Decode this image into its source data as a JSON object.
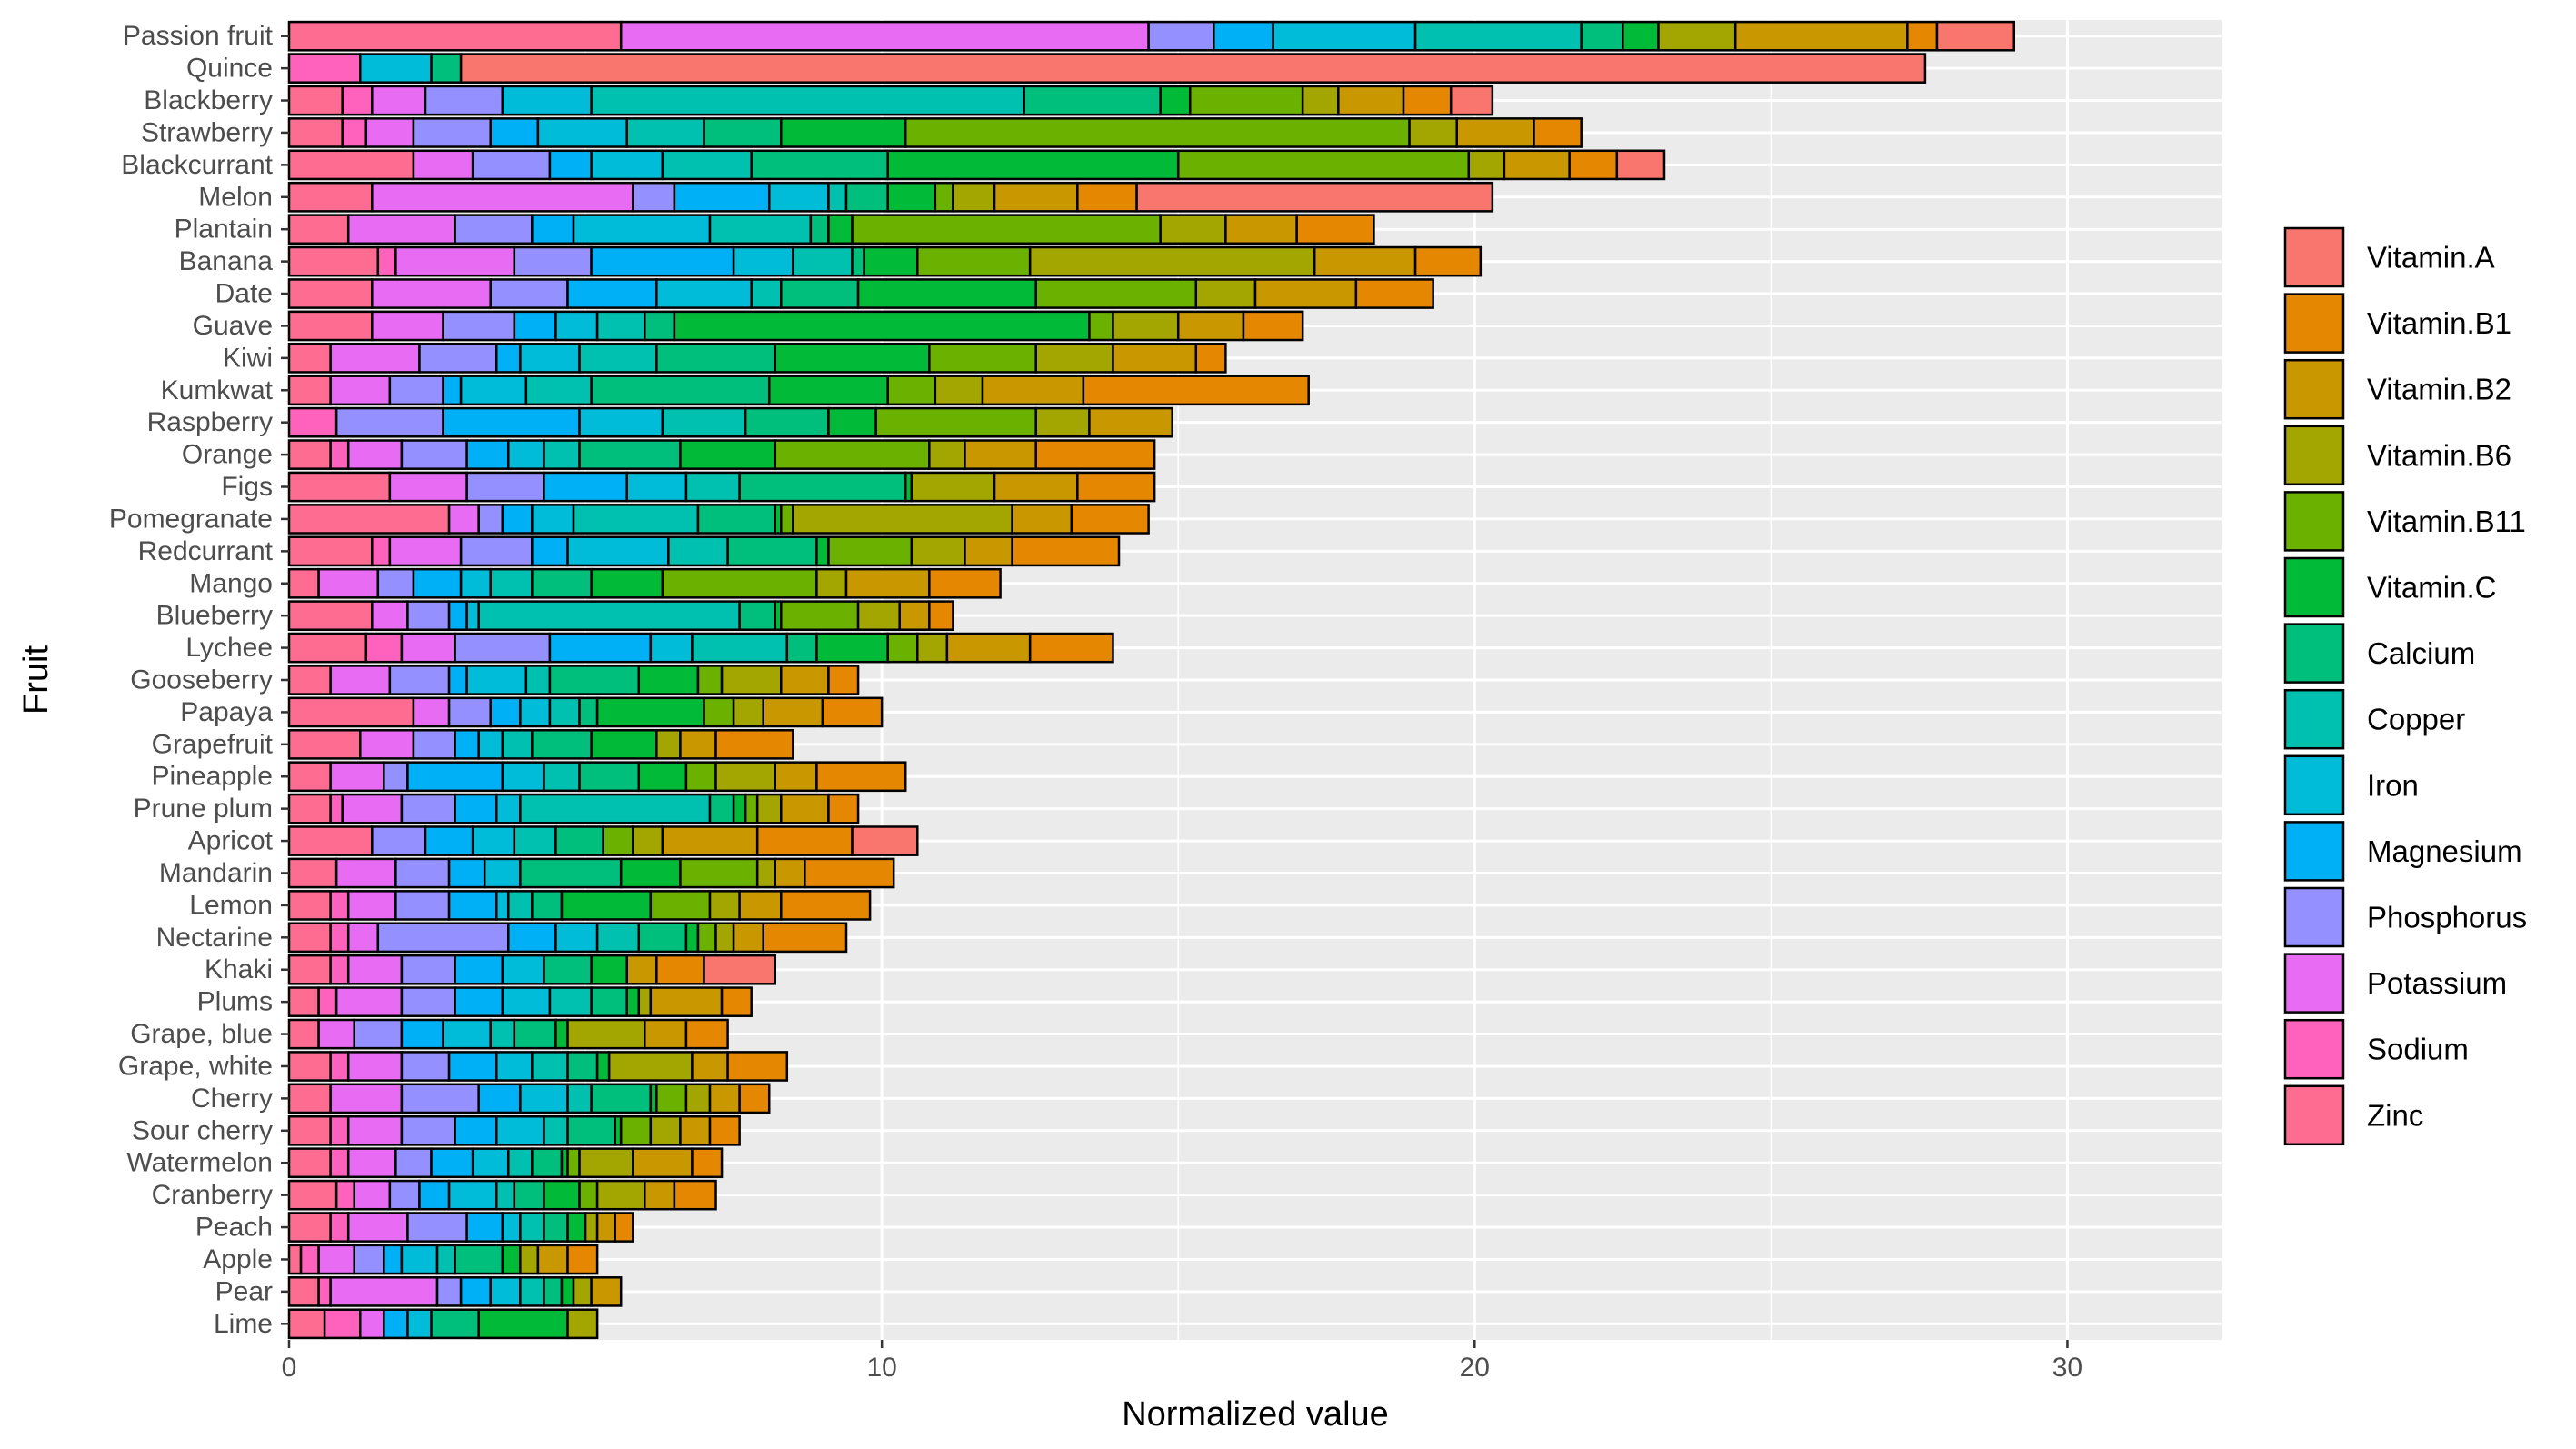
{
  "chart_data": {
    "type": "bar",
    "orientation": "horizontal",
    "stacked": true,
    "title": "",
    "xlabel": "Normalized value",
    "ylabel": "Fruit",
    "xlim": [
      0,
      32.6
    ],
    "xticks": [
      0,
      10,
      20,
      30
    ],
    "categories": [
      "Passion fruit",
      "Quince",
      "Blackberry",
      "Strawberry",
      "Blackcurrant",
      "Melon",
      "Plantain",
      "Banana",
      "Date",
      "Guave",
      "Kiwi",
      "Kumkwat",
      "Raspberry",
      "Orange",
      "Figs",
      "Pomegranate",
      "Redcurrant",
      "Mango",
      "Blueberry",
      "Lychee",
      "Gooseberry",
      "Papaya",
      "Grapefruit",
      "Pineapple",
      "Prune plum",
      "Apricot",
      "Mandarin",
      "Lemon",
      "Nectarine",
      "Khaki",
      "Plums",
      "Grape, blue",
      "Grape, white",
      "Cherry",
      "Sour cherry",
      "Watermelon",
      "Cranberry",
      "Peach",
      "Apple",
      "Pear",
      "Lime"
    ],
    "series": [
      {
        "name": "Vitamin.A",
        "color": "#F8766D",
        "values": [
          1.3,
          24.7,
          0.7,
          0,
          0.8,
          6.0,
          0,
          0,
          0,
          0,
          0,
          0,
          0,
          0,
          0,
          0,
          0,
          0,
          0,
          0,
          0,
          0,
          0,
          0,
          0,
          1.1,
          0,
          0,
          0,
          1.2,
          0,
          0,
          0,
          0,
          0,
          0,
          0,
          0,
          0,
          0,
          0
        ]
      },
      {
        "name": "Vitamin.B1",
        "color": "#E58700",
        "values": [
          0.5,
          0,
          0.8,
          0.8,
          0.8,
          1.0,
          1.3,
          1.1,
          1.3,
          1.0,
          0.5,
          3.8,
          0,
          2.0,
          1.3,
          1.3,
          1.8,
          1.2,
          0.4,
          1.4,
          0.5,
          1.0,
          1.3,
          1.5,
          0.5,
          1.6,
          1.5,
          1.5,
          1.4,
          0.8,
          0.5,
          0.7,
          1.0,
          0.5,
          0.5,
          0.5,
          0.7,
          0.3,
          0.5,
          0,
          0
        ]
      },
      {
        "name": "Vitamin.B2",
        "color": "#C99800",
        "values": [
          2.9,
          0,
          1.1,
          1.3,
          1.1,
          1.4,
          1.2,
          1.7,
          1.7,
          1.1,
          1.4,
          1.7,
          1.4,
          1.2,
          1.4,
          1.0,
          0.8,
          1.4,
          0.5,
          1.4,
          0.8,
          1.0,
          0.6,
          0.7,
          0.8,
          1.6,
          0.5,
          0.7,
          0.5,
          0.5,
          1.2,
          0.7,
          0.6,
          0.5,
          0.5,
          1.0,
          0.5,
          0.3,
          0.5,
          0.5,
          0
        ]
      },
      {
        "name": "Vitamin.B6",
        "color": "#A3A500",
        "values": [
          1.3,
          0,
          0.6,
          0.8,
          0.6,
          0.7,
          1.1,
          4.8,
          1.0,
          1.1,
          1.3,
          0.8,
          0.9,
          0.6,
          1.4,
          3.7,
          0.9,
          0.5,
          0.7,
          0.5,
          1.0,
          0.5,
          0.4,
          1.0,
          0.4,
          0.5,
          0.3,
          0.5,
          0.3,
          0,
          0.2,
          1.3,
          1.4,
          0.4,
          0.5,
          0.9,
          0.8,
          0.2,
          0.3,
          0.3,
          0.5
        ]
      },
      {
        "name": "Vitamin.B11",
        "color": "#6BB100",
        "values": [
          0,
          0,
          1.9,
          8.5,
          4.9,
          0.3,
          5.2,
          1.9,
          2.7,
          0.4,
          1.8,
          0.8,
          2.7,
          2.6,
          0,
          0.2,
          1.4,
          2.6,
          1.3,
          0.5,
          0.4,
          0.5,
          0,
          0.5,
          0.2,
          0.5,
          1.3,
          1.0,
          0.3,
          0,
          0,
          0,
          0,
          0.5,
          0.5,
          0.2,
          0.3,
          0,
          0,
          0,
          0
        ]
      },
      {
        "name": "Vitamin.C",
        "color": "#00BA38",
        "values": [
          0.6,
          0,
          0.5,
          2.1,
          4.9,
          0.8,
          0.4,
          0.9,
          3.0,
          7.0,
          2.6,
          2.0,
          0.8,
          1.6,
          0.1,
          0.1,
          0.2,
          1.2,
          0.1,
          1.2,
          1.0,
          1.8,
          1.1,
          0.8,
          0.2,
          0,
          1.0,
          1.5,
          0.2,
          0.6,
          0.2,
          0.2,
          0.2,
          0.1,
          0.1,
          0.1,
          0.6,
          0.3,
          0.3,
          0.2,
          1.5
        ]
      },
      {
        "name": "Calcium",
        "color": "#00BF7D",
        "values": [
          0.7,
          0.5,
          2.3,
          1.3,
          2.3,
          0.7,
          0.3,
          0.2,
          1.3,
          0.5,
          2.0,
          3.0,
          1.4,
          1.7,
          2.8,
          1.3,
          1.5,
          1.0,
          0.6,
          0.5,
          1.5,
          0.3,
          1.0,
          1.0,
          0.4,
          0.8,
          1.7,
          0.5,
          0.8,
          0.8,
          0.6,
          0.7,
          0.5,
          1.0,
          0.8,
          0.5,
          0.5,
          0.4,
          0.8,
          0.3,
          0.8
        ]
      },
      {
        "name": "Copper",
        "color": "#00C0AF",
        "values": [
          2.8,
          0,
          7.3,
          1.3,
          1.5,
          0.3,
          1.7,
          1.0,
          0.5,
          0.8,
          1.3,
          1.1,
          1.4,
          0.6,
          0.9,
          2.1,
          1.0,
          0.7,
          4.4,
          1.6,
          0.4,
          0.5,
          0.5,
          0.6,
          3.2,
          0.7,
          0,
          0.4,
          0.7,
          0,
          0.7,
          0.4,
          0.6,
          0.4,
          0.4,
          0.4,
          0.3,
          0.4,
          0.3,
          0.4,
          0
        ]
      },
      {
        "name": "Iron",
        "color": "#00BCD8",
        "values": [
          2.4,
          1.2,
          1.5,
          1.5,
          1.2,
          1.0,
          2.3,
          1.0,
          1.6,
          0.7,
          1.0,
          1.1,
          1.4,
          0.6,
          1.0,
          0.7,
          1.7,
          0.5,
          0.2,
          0.7,
          1.0,
          0.5,
          0.4,
          0.7,
          0.4,
          0.7,
          0.6,
          0.2,
          0.7,
          0.7,
          0.8,
          0.8,
          0.6,
          0.8,
          0.8,
          0.6,
          0.8,
          0.3,
          0.6,
          0.5,
          0.4
        ]
      },
      {
        "name": "Magnesium",
        "color": "#00B0F6",
        "values": [
          1.0,
          0,
          0,
          0.8,
          0.7,
          1.6,
          0.7,
          2.4,
          1.5,
          0.7,
          0.4,
          0.3,
          2.3,
          0.7,
          1.4,
          0.5,
          0.6,
          0.8,
          0.3,
          1.7,
          0.3,
          0.5,
          0.4,
          1.6,
          0.7,
          0.8,
          0.6,
          0.8,
          0.8,
          0.8,
          0.8,
          0.7,
          0.8,
          0.7,
          0.7,
          0.7,
          0.5,
          0.6,
          0.3,
          0.5,
          0.4
        ]
      },
      {
        "name": "Phosphorus",
        "color": "#9590FF",
        "values": [
          1.1,
          0,
          1.3,
          1.3,
          1.3,
          0.7,
          1.3,
          1.3,
          1.3,
          1.2,
          1.3,
          0.9,
          1.8,
          1.1,
          1.3,
          0.4,
          1.2,
          0.6,
          0.7,
          1.6,
          1.0,
          0.7,
          0.7,
          0.4,
          0.9,
          0.9,
          0.9,
          0.9,
          2.2,
          0.9,
          0.9,
          0.8,
          0.8,
          1.3,
          0.9,
          0.6,
          0.5,
          1.0,
          0.5,
          0.4,
          0
        ]
      },
      {
        "name": "Potassium",
        "color": "#E76BF3",
        "values": [
          8.9,
          0,
          0.9,
          0.8,
          1.0,
          4.4,
          1.8,
          2.0,
          2.0,
          1.2,
          1.5,
          1.0,
          0,
          0.9,
          1.3,
          0.5,
          1.2,
          1.0,
          0.6,
          0.9,
          1.0,
          0.6,
          0.9,
          0.9,
          1.0,
          0,
          1.0,
          0.8,
          0.5,
          0.9,
          1.1,
          0.6,
          0.9,
          1.2,
          0.9,
          0.8,
          0.6,
          1.0,
          0.6,
          1.8,
          0.4
        ]
      },
      {
        "name": "Sodium",
        "color": "#FF62BC",
        "values": [
          0,
          1.2,
          0.5,
          0.4,
          0,
          0,
          0,
          0.3,
          0,
          0,
          0,
          0,
          0.8,
          0.3,
          0,
          0,
          0.3,
          0,
          0,
          0.6,
          0,
          0,
          0,
          0,
          0.2,
          0,
          0,
          0.3,
          0.3,
          0.3,
          0.3,
          0,
          0.3,
          0,
          0.3,
          0.3,
          0.3,
          0.3,
          0.3,
          0.2,
          0.6
        ]
      },
      {
        "name": "Zinc",
        "color": "#FF6C91",
        "values": [
          5.6,
          0,
          0.9,
          0.9,
          2.1,
          1.4,
          1.0,
          1.5,
          1.4,
          1.4,
          0.7,
          0.7,
          0,
          0.7,
          1.7,
          2.7,
          1.4,
          0.5,
          1.4,
          1.3,
          0.7,
          2.1,
          1.2,
          0.7,
          0.7,
          1.4,
          0.8,
          0.7,
          0.7,
          0.7,
          0.5,
          0.5,
          0.7,
          0.7,
          0.7,
          0.7,
          0.8,
          0.7,
          0.2,
          0.5,
          0.6
        ]
      }
    ],
    "legend_position": "right"
  }
}
